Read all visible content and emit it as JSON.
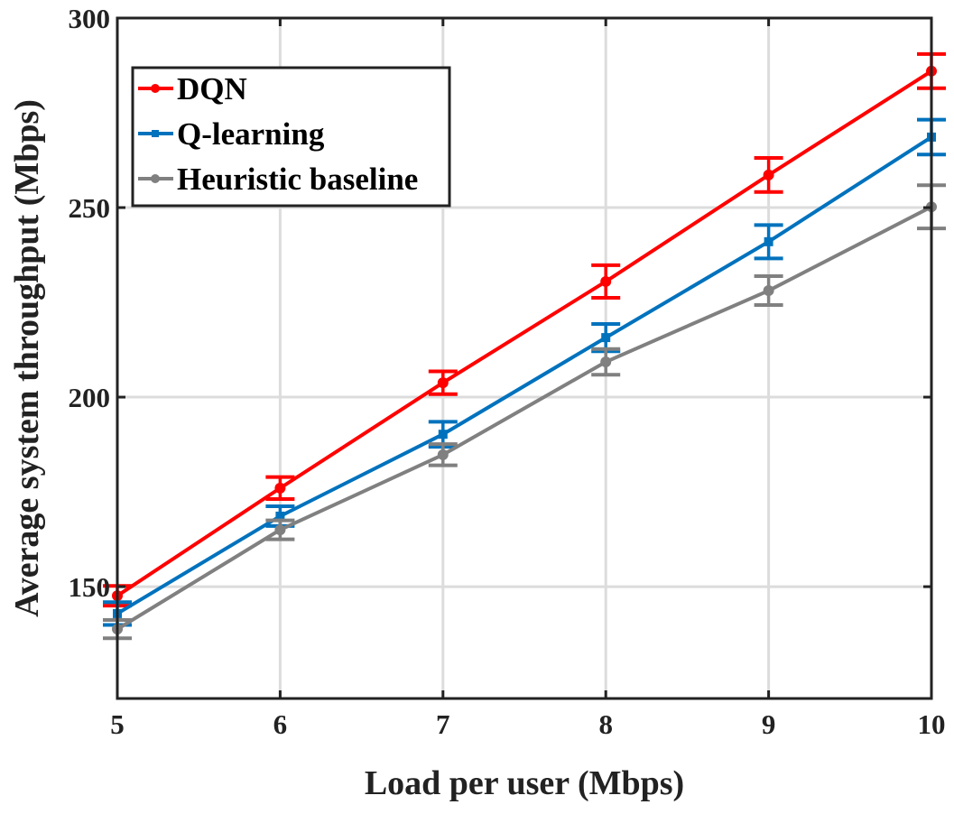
{
  "chart_data": {
    "type": "line",
    "title": "",
    "xlabel": "Load per user (Mbps)",
    "ylabel": "Average system throughput (Mbps)",
    "xlim": [
      5,
      10
    ],
    "ylim": [
      120.5,
      300
    ],
    "xticks": [
      5,
      6,
      7,
      8,
      9,
      10
    ],
    "yticks": [
      150,
      200,
      250,
      300
    ],
    "grid": true,
    "legend_position": "top-left",
    "x": [
      5,
      6,
      7,
      8,
      9,
      10
    ],
    "series": [
      {
        "name": "DQN",
        "color": "#ff0000",
        "marker": "circle",
        "values": [
          147.6,
          176.0,
          203.8,
          230.5,
          258.6,
          286.0
        ],
        "errors": [
          2.6,
          2.9,
          3.0,
          4.3,
          4.5,
          4.5
        ]
      },
      {
        "name": "Q-learning",
        "color": "#0072bd",
        "marker": "square",
        "values": [
          142.9,
          168.6,
          190.2,
          215.7,
          241.0,
          268.6
        ],
        "errors": [
          3.0,
          2.6,
          3.3,
          3.6,
          4.4,
          4.6
        ]
      },
      {
        "name": "Heuristic baseline",
        "color": "#808080",
        "marker": "circle",
        "values": [
          138.8,
          165.0,
          184.8,
          209.3,
          228.1,
          250.2
        ],
        "errors": [
          2.4,
          2.5,
          2.8,
          3.4,
          3.8,
          5.7
        ]
      }
    ]
  }
}
